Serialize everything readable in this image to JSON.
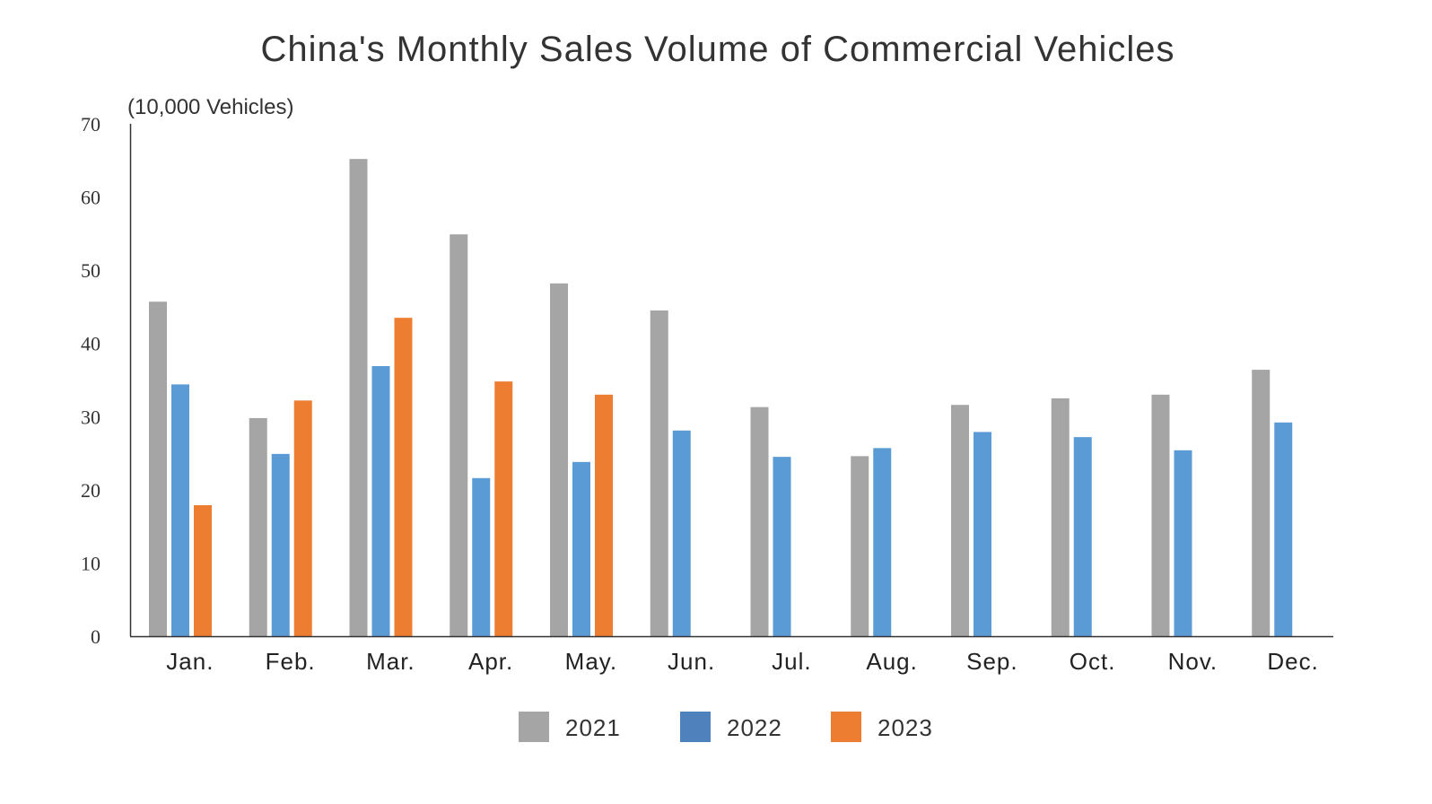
{
  "chart_data": {
    "type": "bar",
    "title": "China's Monthly Sales Volume of Commercial Vehicles",
    "ylabel": "(10,000 Vehicles)",
    "xlabel": "",
    "ylim": [
      0,
      70
    ],
    "yticks": [
      "0",
      "10",
      "20",
      "30",
      "40",
      "50",
      "60",
      "70"
    ],
    "grid": false,
    "legend_position": "bottom",
    "categories": [
      "Jan.",
      "Feb.",
      "Mar.",
      "Apr.",
      "May.",
      "Jun.",
      "Jul.",
      "Aug.",
      "Sep.",
      "Oct.",
      "Nov.",
      "Dec."
    ],
    "series": [
      {
        "name": "2021",
        "color": "#a5a5a5",
        "legend_color": "#a5a5a5",
        "values": [
          45.7,
          29.8,
          65.2,
          54.9,
          48.2,
          44.5,
          31.3,
          24.6,
          31.6,
          32.5,
          33.0,
          36.4
        ]
      },
      {
        "name": "2022",
        "color": "#5b9bd5",
        "legend_color": "#4f81bd",
        "values": [
          34.4,
          24.9,
          36.9,
          21.6,
          23.8,
          28.1,
          24.5,
          25.7,
          27.9,
          27.2,
          25.4,
          29.2
        ]
      },
      {
        "name": "2023",
        "color": "#ed7d31",
        "legend_color": "#ed7d31",
        "values": [
          17.9,
          32.2,
          43.5,
          34.8,
          33.0,
          null,
          null,
          null,
          null,
          null,
          null,
          null
        ]
      }
    ]
  }
}
